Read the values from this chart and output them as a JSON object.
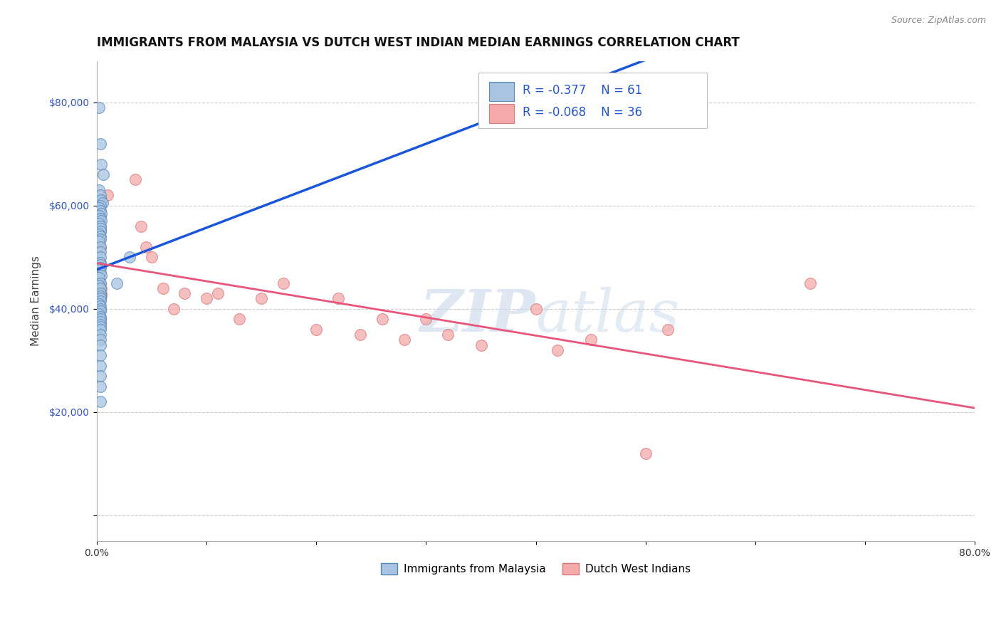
{
  "title": "IMMIGRANTS FROM MALAYSIA VS DUTCH WEST INDIAN MEDIAN EARNINGS CORRELATION CHART",
  "source_text": "Source: ZipAtlas.com",
  "ylabel": "Median Earnings",
  "xlim": [
    0.0,
    0.8
  ],
  "ylim": [
    -5000,
    88000
  ],
  "plot_ylim": [
    0,
    88000
  ],
  "yticks": [
    0,
    20000,
    40000,
    60000,
    80000
  ],
  "ytick_labels": [
    "",
    "$20,000",
    "$40,000",
    "$60,000",
    "$80,000"
  ],
  "xticks": [
    0.0,
    0.1,
    0.2,
    0.3,
    0.4,
    0.5,
    0.6,
    0.7,
    0.8
  ],
  "xtick_labels": [
    "0.0%",
    "",
    "",
    "",
    "",
    "",
    "",
    "",
    "80.0%"
  ],
  "legend_r1": "-0.377",
  "legend_n1": "61",
  "legend_r2": "-0.068",
  "legend_n2": "36",
  "series1_label": "Immigrants from Malaysia",
  "series2_label": "Dutch West Indians",
  "series1_color": "#A8C4E0",
  "series2_color": "#F4AAAA",
  "series1_edge": "#5588BB",
  "series2_edge": "#DD7777",
  "trend1_color": "#1a56db",
  "trend2_color": "#e8547a",
  "watermark_color": "#C8D8EA",
  "background_color": "#FFFFFF",
  "grid_color": "#CCCCCC",
  "blue_x": [
    0.002,
    0.003,
    0.004,
    0.006,
    0.002,
    0.003,
    0.004,
    0.005,
    0.003,
    0.002,
    0.003,
    0.004,
    0.002,
    0.003,
    0.004,
    0.002,
    0.003,
    0.003,
    0.003,
    0.002,
    0.003,
    0.003,
    0.002,
    0.003,
    0.003,
    0.003,
    0.003,
    0.003,
    0.003,
    0.002,
    0.003,
    0.004,
    0.002,
    0.003,
    0.002,
    0.003,
    0.003,
    0.003,
    0.003,
    0.003,
    0.002,
    0.003,
    0.003,
    0.003,
    0.002,
    0.003,
    0.003,
    0.003,
    0.003,
    0.003,
    0.003,
    0.003,
    0.003,
    0.003,
    0.003,
    0.003,
    0.003,
    0.003,
    0.003,
    0.018,
    0.03
  ],
  "blue_y": [
    79000,
    72000,
    68000,
    66000,
    63000,
    62000,
    61000,
    60500,
    60000,
    59500,
    59000,
    58500,
    58000,
    57500,
    57000,
    56500,
    56000,
    55500,
    55000,
    54500,
    54000,
    53500,
    53000,
    52000,
    51000,
    50000,
    49000,
    48500,
    48000,
    47500,
    47000,
    46500,
    46000,
    45000,
    44500,
    44000,
    43000,
    42500,
    42000,
    41500,
    41000,
    40500,
    40000,
    39500,
    39000,
    38500,
    38000,
    37500,
    37000,
    36500,
    36000,
    35000,
    34000,
    33000,
    31000,
    29000,
    27000,
    25000,
    22000,
    45000,
    50000
  ],
  "pink_x": [
    0.003,
    0.003,
    0.003,
    0.003,
    0.003,
    0.003,
    0.004,
    0.004,
    0.004,
    0.01,
    0.035,
    0.04,
    0.045,
    0.05,
    0.06,
    0.07,
    0.08,
    0.1,
    0.11,
    0.13,
    0.15,
    0.17,
    0.2,
    0.22,
    0.24,
    0.26,
    0.28,
    0.3,
    0.32,
    0.35,
    0.4,
    0.42,
    0.45,
    0.5,
    0.52,
    0.65
  ],
  "pink_y": [
    58000,
    55000,
    52000,
    48000,
    45000,
    42000,
    44000,
    43000,
    42500,
    62000,
    65000,
    56000,
    52000,
    50000,
    44000,
    40000,
    43000,
    42000,
    43000,
    38000,
    42000,
    45000,
    36000,
    42000,
    35000,
    38000,
    34000,
    38000,
    35000,
    33000,
    40000,
    32000,
    34000,
    12000,
    36000,
    45000
  ],
  "title_fontsize": 12,
  "axis_fontsize": 11,
  "tick_fontsize": 10,
  "legend_fontsize": 12
}
